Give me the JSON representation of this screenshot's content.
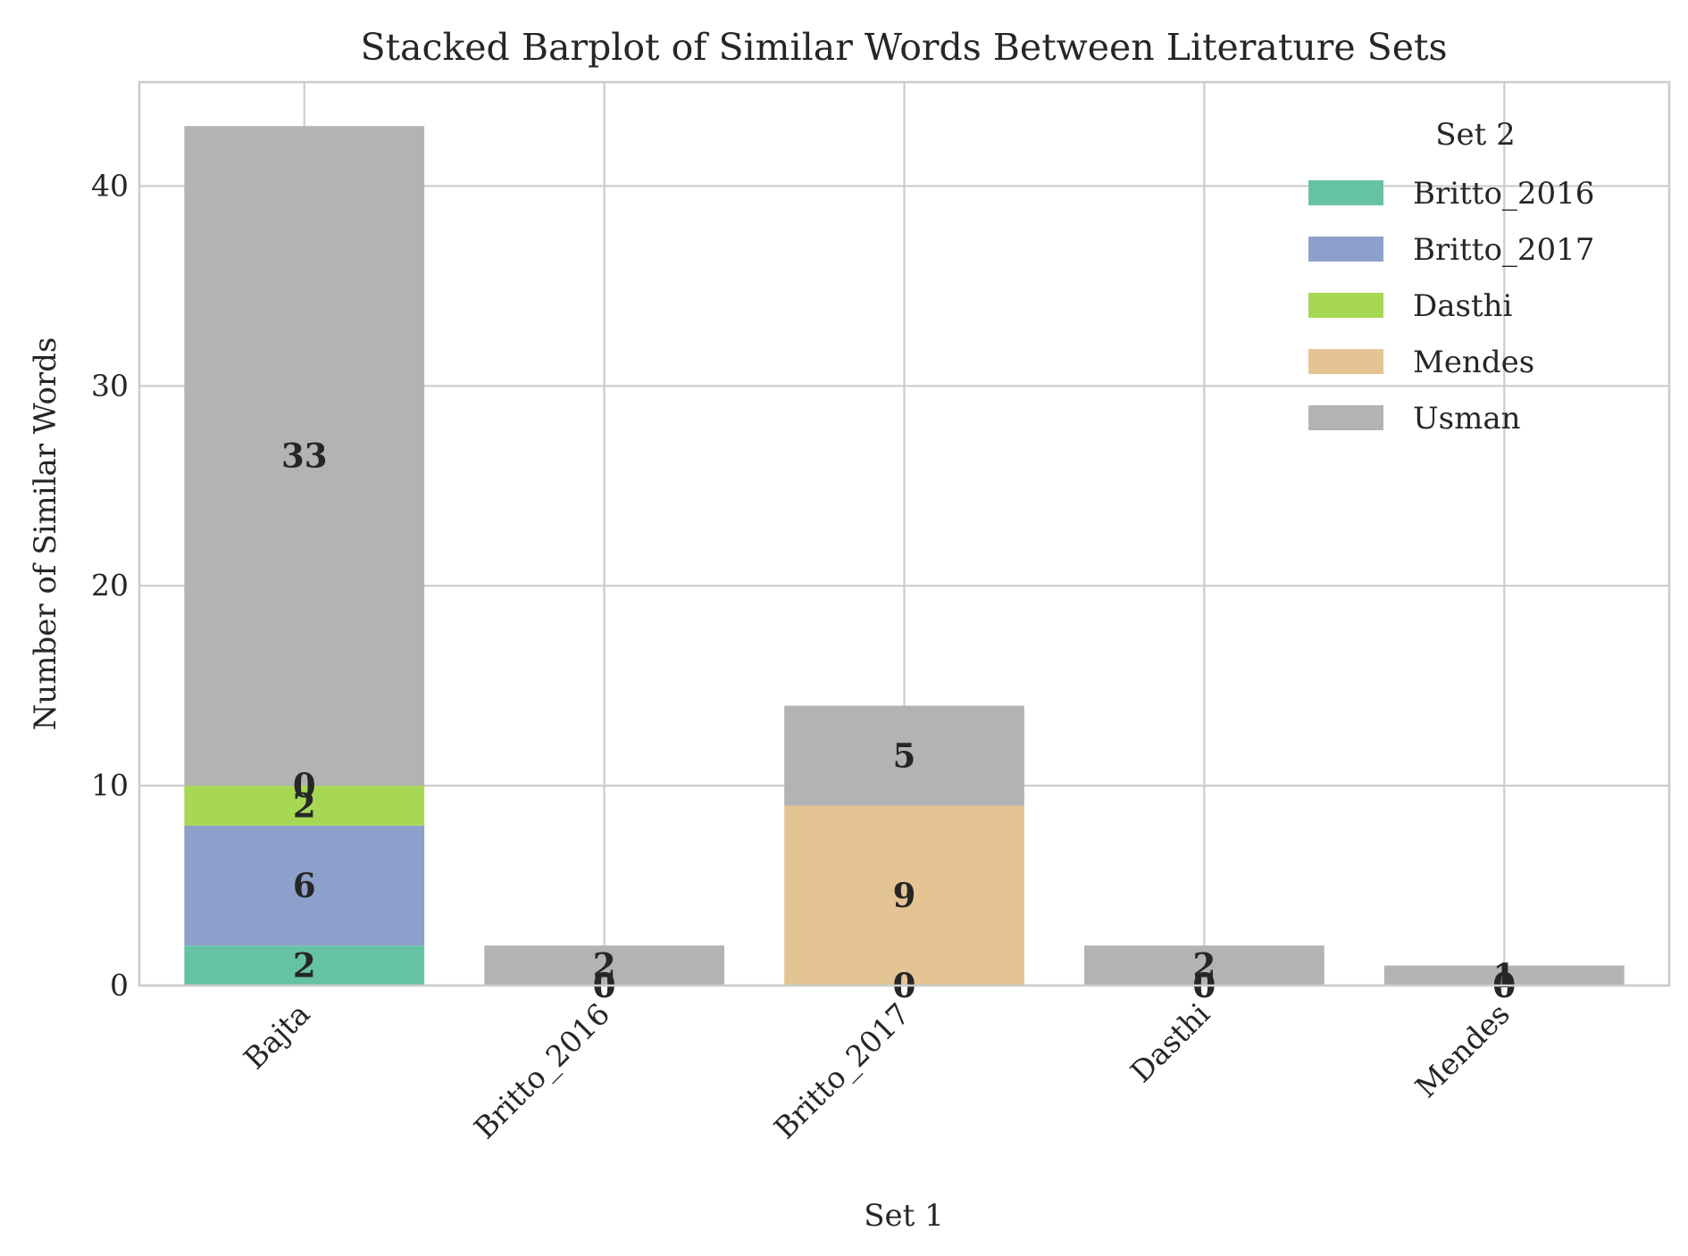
{
  "chart_data": {
    "type": "bar",
    "stacked": true,
    "title": "Stacked Barplot of Similar Words Between Literature Sets",
    "xlabel": "Set 1",
    "ylabel": "Number of Similar Words",
    "categories": [
      "Bajta",
      "Britto_2016",
      "Britto_2017",
      "Dasthi",
      "Mendes"
    ],
    "ylim": [
      0,
      45.2
    ],
    "yticks": [
      0,
      10,
      20,
      30,
      40
    ],
    "grid": true,
    "legend": {
      "title": "Set 2",
      "placement": "top-right"
    },
    "series": [
      {
        "name": "Britto_2016",
        "color": "#66c2a5",
        "values": [
          2,
          0,
          0,
          0,
          0
        ]
      },
      {
        "name": "Britto_2017",
        "color": "#8da0cb",
        "values": [
          6,
          0,
          0,
          0,
          0
        ]
      },
      {
        "name": "Dasthi",
        "color": "#a6d854",
        "values": [
          2,
          0,
          0,
          0,
          0
        ]
      },
      {
        "name": "Mendes",
        "color": "#e5c494",
        "values": [
          0,
          0,
          9,
          0,
          0
        ]
      },
      {
        "name": "Usman",
        "color": "#b3b3b3",
        "values": [
          33,
          2,
          5,
          2,
          1
        ]
      }
    ]
  }
}
